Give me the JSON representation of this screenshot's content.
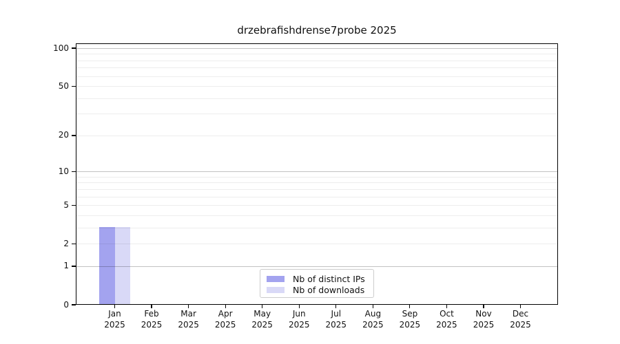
{
  "chart_data": {
    "type": "bar",
    "title": "drzebrafishdrense7probe 2025",
    "categories": [
      {
        "month": "Jan",
        "year": "2025"
      },
      {
        "month": "Feb",
        "year": "2025"
      },
      {
        "month": "Mar",
        "year": "2025"
      },
      {
        "month": "Apr",
        "year": "2025"
      },
      {
        "month": "May",
        "year": "2025"
      },
      {
        "month": "Jun",
        "year": "2025"
      },
      {
        "month": "Jul",
        "year": "2025"
      },
      {
        "month": "Aug",
        "year": "2025"
      },
      {
        "month": "Sep",
        "year": "2025"
      },
      {
        "month": "Oct",
        "year": "2025"
      },
      {
        "month": "Nov",
        "year": "2025"
      },
      {
        "month": "Dec",
        "year": "2025"
      }
    ],
    "series": [
      {
        "name": "Nb of distinct IPs",
        "color": "#a3a3ef",
        "values": [
          3,
          0,
          0,
          0,
          0,
          0,
          0,
          0,
          0,
          0,
          0,
          0
        ]
      },
      {
        "name": "Nb of downloads",
        "color": "#d9d9f7",
        "values": [
          3,
          0,
          0,
          0,
          0,
          0,
          0,
          0,
          0,
          0,
          0,
          0
        ]
      }
    ],
    "y_scale": "log1p",
    "y_ticks": [
      0,
      1,
      2,
      5,
      10,
      20,
      50,
      100
    ],
    "y_gridlines_major": [
      1,
      10,
      100
    ],
    "y_gridlines_minor": [
      2,
      3,
      4,
      5,
      6,
      7,
      8,
      9,
      20,
      30,
      40,
      50,
      60,
      70,
      80,
      90
    ],
    "ylim": [
      0,
      110
    ],
    "xlabel": "",
    "ylabel": "",
    "legend": {
      "position": "lower center"
    },
    "colors": {
      "spine": "#000000",
      "grid_major": "#c2c2c2",
      "grid_minor": "#ededed"
    }
  }
}
